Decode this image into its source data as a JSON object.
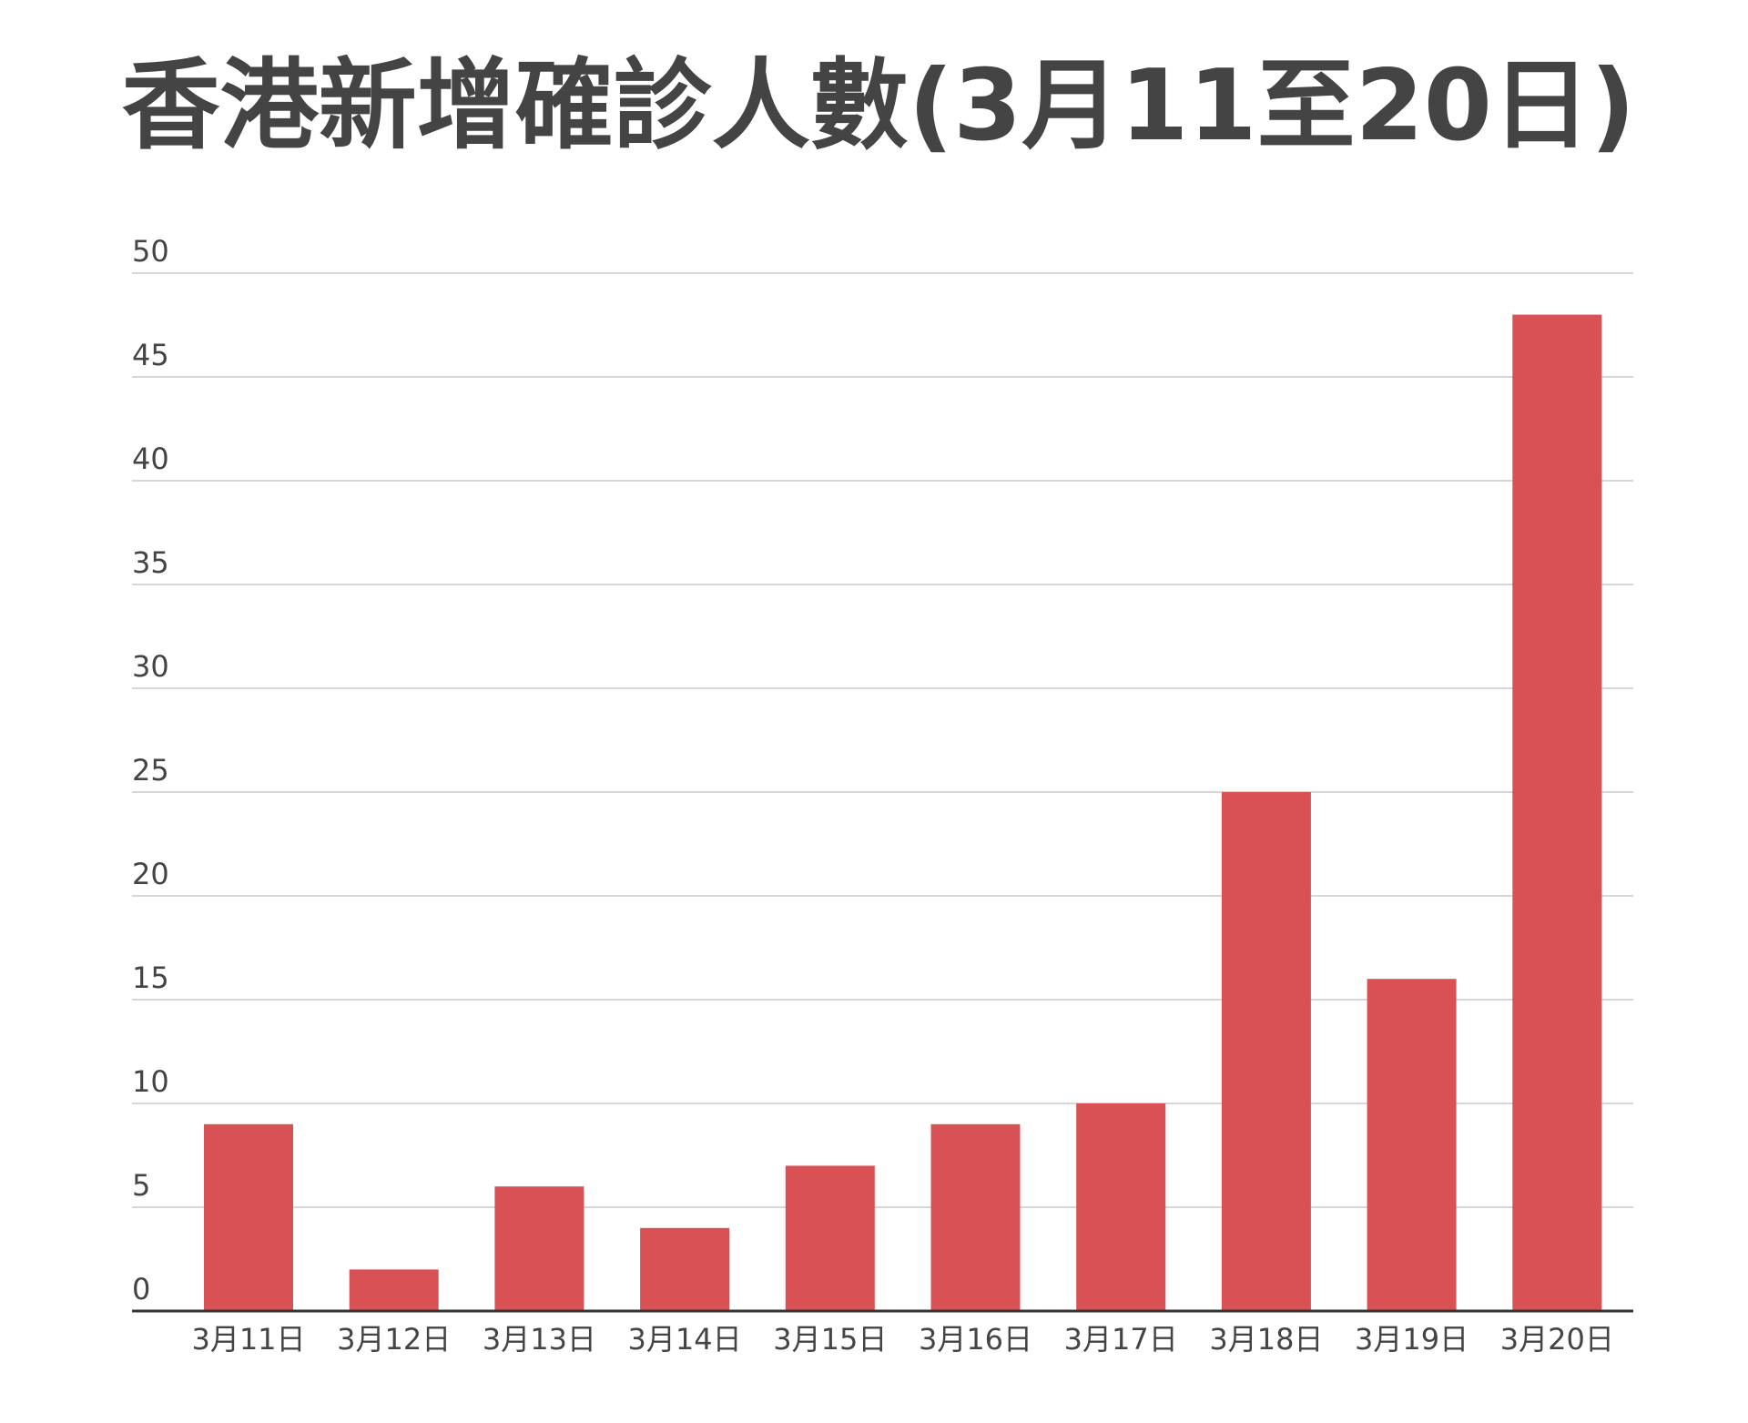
{
  "chart_data": {
    "type": "bar",
    "title": "香港新增確診人數(3月11至20日)",
    "categories": [
      "3月11日",
      "3月12日",
      "3月13日",
      "3月14日",
      "3月15日",
      "3月16日",
      "3月17日",
      "3月18日",
      "3月19日",
      "3月20日"
    ],
    "values": [
      9,
      2,
      6,
      4,
      7,
      9,
      10,
      25,
      16,
      48
    ],
    "color": "#d95155",
    "ylim": [
      0,
      50
    ],
    "yticks": [
      0,
      5,
      10,
      15,
      20,
      25,
      30,
      35,
      40,
      45,
      50
    ],
    "grid": true
  }
}
